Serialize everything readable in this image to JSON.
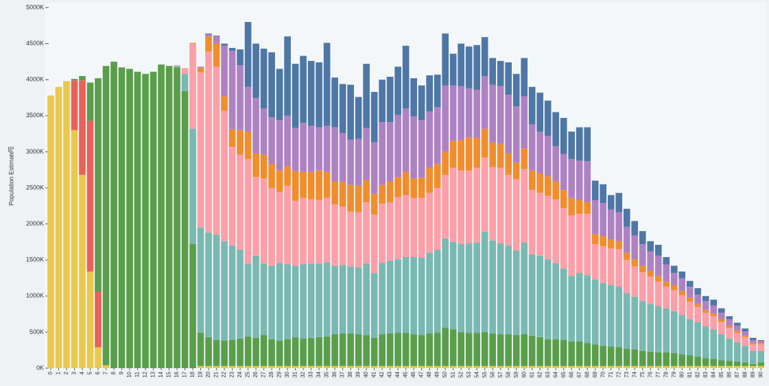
{
  "chart_data": {
    "type": "stacked-bar",
    "y_label": "Population Estimate",
    "categories": [
      "0",
      "1",
      "2",
      "3",
      "4",
      "5",
      "6",
      "7",
      "8",
      "9",
      "10",
      "11",
      "12",
      "13",
      "14",
      "15",
      "16",
      "17",
      "18",
      "19",
      "20",
      "21",
      "22",
      "23",
      "24",
      "25",
      "26",
      "27",
      "28",
      "29",
      "30",
      "31",
      "32",
      "33",
      "34",
      "35",
      "36",
      "37",
      "38",
      "39",
      "40",
      "41",
      "42",
      "43",
      "44",
      "45",
      "46",
      "47",
      "48",
      "49",
      "50",
      "51",
      "52",
      "53",
      "54",
      "55",
      "56",
      "57",
      "58",
      "59",
      "60",
      "61",
      "62",
      "63",
      "64",
      "65",
      "66",
      "67",
      "68",
      "69",
      "70",
      "71",
      "72",
      "73",
      "74",
      "75",
      "76",
      "77",
      "78",
      "79",
      "80",
      "81",
      "82",
      "83",
      "84",
      "85",
      "86",
      "87",
      "88",
      "89",
      "90"
    ],
    "ylim": [
      0,
      5000
    ],
    "yticks": [
      {
        "value": 0,
        "label": "0K"
      },
      {
        "value": 500,
        "label": "500K"
      },
      {
        "value": 1000,
        "label": "1000K"
      },
      {
        "value": 1500,
        "label": "1500K"
      },
      {
        "value": 2000,
        "label": "2000K"
      },
      {
        "value": 2500,
        "label": "2500K"
      },
      {
        "value": 3000,
        "label": "3000K"
      },
      {
        "value": 3500,
        "label": "3500K"
      },
      {
        "value": 4000,
        "label": "4000K"
      },
      {
        "value": 4500,
        "label": "4500K"
      },
      {
        "value": 5000,
        "label": "5000K"
      }
    ],
    "series": [
      {
        "color": "#e9c84c",
        "values": [
          3780,
          3900,
          3980,
          3300,
          2680,
          1340,
          290,
          40,
          0,
          0,
          0,
          0,
          0,
          0,
          0,
          0,
          0,
          0,
          0,
          30,
          30,
          30,
          30,
          30,
          30,
          30,
          30,
          30,
          30,
          30,
          30,
          30,
          30,
          30,
          30,
          30,
          30,
          30,
          30,
          30,
          30,
          30,
          30,
          30,
          30,
          30,
          30,
          30,
          30,
          30,
          30,
          30,
          30,
          30,
          30,
          30,
          30,
          30,
          30,
          30,
          30,
          30,
          30,
          30,
          30,
          30,
          30,
          30,
          30,
          30,
          30,
          30,
          30,
          30,
          30,
          30,
          30,
          30,
          30,
          30,
          30,
          30,
          30,
          30,
          30,
          30,
          30,
          30,
          30,
          30,
          30
        ]
      },
      {
        "color": "#e8625a",
        "values": [
          0,
          0,
          0,
          690,
          1310,
          2090,
          770,
          0,
          0,
          0,
          0,
          0,
          0,
          0,
          0,
          0,
          0,
          0,
          0,
          0,
          0,
          0,
          0,
          0,
          0,
          0,
          0,
          0,
          0,
          0,
          0,
          0,
          0,
          0,
          0,
          0,
          0,
          0,
          0,
          0,
          0,
          0,
          0,
          0,
          0,
          0,
          0,
          0,
          0,
          0,
          0,
          0,
          0,
          0,
          0,
          0,
          0,
          0,
          0,
          0,
          0,
          0,
          0,
          0,
          0,
          0,
          0,
          0,
          0,
          0,
          0,
          0,
          0,
          0,
          0,
          0,
          0,
          0,
          0,
          0,
          0,
          0,
          0,
          0,
          0,
          0,
          0,
          0,
          0,
          0,
          0
        ]
      },
      {
        "color": "#5a9e4b",
        "values": [
          0,
          0,
          0,
          20,
          60,
          530,
          2960,
          4150,
          4250,
          4170,
          4150,
          4110,
          4080,
          4110,
          4210,
          4190,
          4170,
          3840,
          1720,
          460,
          400,
          360,
          350,
          360,
          380,
          410,
          390,
          430,
          370,
          350,
          370,
          400,
          380,
          390,
          400,
          410,
          440,
          450,
          450,
          440,
          430,
          390,
          440,
          450,
          460,
          460,
          440,
          430,
          450,
          460,
          530,
          510,
          470,
          460,
          460,
          470,
          450,
          440,
          440,
          430,
          440,
          420,
          400,
          370,
          370,
          360,
          340,
          340,
          320,
          300,
          280,
          270,
          260,
          240,
          230,
          210,
          200,
          190,
          190,
          180,
          160,
          150,
          130,
          110,
          100,
          80,
          70,
          60,
          50,
          30,
          50
        ]
      },
      {
        "color": "#7ab8b2",
        "values": [
          0,
          0,
          0,
          0,
          0,
          0,
          0,
          0,
          0,
          0,
          0,
          0,
          0,
          0,
          0,
          0,
          20,
          240,
          1600,
          1460,
          1450,
          1460,
          1380,
          1310,
          1230,
          1010,
          1140,
          990,
          1020,
          1080,
          1040,
          990,
          1030,
          1030,
          1020,
          1030,
          950,
          950,
          930,
          930,
          990,
          900,
          990,
          1010,
          1020,
          1050,
          1070,
          1070,
          1120,
          1150,
          1240,
          1210,
          1220,
          1240,
          1250,
          1390,
          1290,
          1260,
          1230,
          1170,
          1270,
          1130,
          1130,
          1110,
          1060,
          990,
          910,
          950,
          940,
          900,
          870,
          850,
          840,
          770,
          730,
          690,
          660,
          640,
          610,
          580,
          550,
          500,
          480,
          440,
          410,
          360,
          310,
          270,
          230,
          180,
          160
        ]
      },
      {
        "color": "#fc9fa8",
        "values": [
          0,
          0,
          0,
          0,
          0,
          0,
          0,
          0,
          0,
          0,
          0,
          0,
          0,
          0,
          0,
          0,
          10,
          80,
          1180,
          2150,
          2510,
          2330,
          1810,
          1370,
          1320,
          1450,
          1090,
          1180,
          1080,
          980,
          1090,
          900,
          920,
          890,
          880,
          890,
          850,
          810,
          760,
          760,
          850,
          810,
          820,
          810,
          860,
          860,
          820,
          830,
          830,
          860,
          880,
          1030,
          1020,
          1010,
          1040,
          1030,
          1020,
          1050,
          980,
          990,
          1020,
          890,
          870,
          880,
          880,
          840,
          840,
          820,
          850,
          490,
          510,
          510,
          520,
          460,
          420,
          400,
          380,
          340,
          300,
          290,
          270,
          240,
          210,
          190,
          180,
          170,
          150,
          130,
          120,
          90,
          90
        ]
      },
      {
        "color": "#f08e2e",
        "values": [
          0,
          0,
          0,
          0,
          0,
          0,
          0,
          0,
          0,
          0,
          0,
          0,
          0,
          0,
          0,
          0,
          0,
          0,
          10,
          60,
          210,
          320,
          200,
          240,
          340,
          380,
          330,
          330,
          330,
          300,
          270,
          410,
          360,
          380,
          410,
          360,
          320,
          340,
          370,
          370,
          310,
          290,
          260,
          290,
          280,
          320,
          270,
          280,
          350,
          330,
          320,
          370,
          420,
          460,
          410,
          400,
          340,
          330,
          300,
          230,
          290,
          270,
          270,
          270,
          250,
          250,
          240,
          190,
          160,
          140,
          140,
          120,
          110,
          100,
          100,
          90,
          80,
          80,
          70,
          70,
          60,
          60,
          40,
          40,
          40,
          40,
          30,
          30,
          20,
          20,
          20
        ]
      },
      {
        "color": "#ae82c2",
        "values": [
          0,
          0,
          0,
          0,
          0,
          0,
          0,
          0,
          0,
          0,
          0,
          0,
          0,
          0,
          0,
          0,
          0,
          0,
          0,
          20,
          30,
          100,
          700,
          1090,
          900,
          620,
          770,
          640,
          650,
          700,
          700,
          600,
          680,
          640,
          600,
          640,
          750,
          680,
          630,
          650,
          720,
          710,
          870,
          820,
          860,
          880,
          860,
          800,
          780,
          790,
          920,
          770,
          750,
          680,
          670,
          730,
          800,
          800,
          810,
          780,
          720,
          640,
          580,
          560,
          490,
          500,
          540,
          550,
          570,
          470,
          460,
          420,
          400,
          360,
          330,
          300,
          270,
          280,
          240,
          170,
          180,
          150,
          130,
          120,
          110,
          90,
          90,
          70,
          60,
          40,
          30
        ]
      },
      {
        "color": "#4e77a5",
        "values": [
          0,
          0,
          0,
          0,
          0,
          0,
          0,
          0,
          0,
          0,
          0,
          0,
          0,
          0,
          0,
          0,
          0,
          0,
          0,
          0,
          10,
          10,
          30,
          40,
          220,
          900,
          750,
          830,
          900,
          710,
          1100,
          890,
          930,
          900,
          900,
          1150,
          690,
          680,
          760,
          580,
          890,
          700,
          590,
          630,
          670,
          870,
          530,
          480,
          500,
          450,
          720,
          440,
          590,
          580,
          620,
          540,
          370,
          350,
          450,
          450,
          530,
          520,
          540,
          490,
          470,
          500,
          380,
          460,
          470,
          270,
          260,
          200,
          270,
          250,
          200,
          180,
          140,
          150,
          100,
          100,
          90,
          80,
          90,
          70,
          80,
          60,
          40,
          40,
          40,
          30,
          10
        ]
      }
    ]
  }
}
